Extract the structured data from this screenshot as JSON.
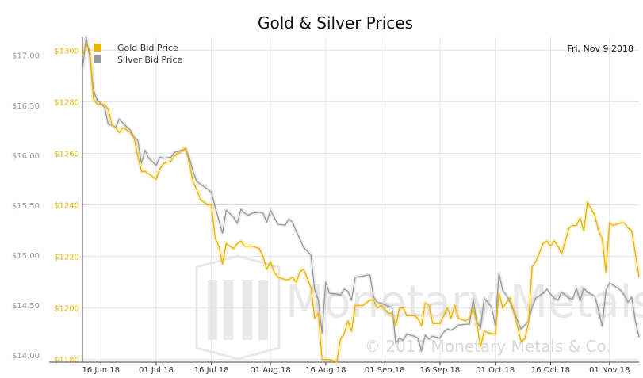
{
  "chart_data": {
    "type": "line",
    "title": "Gold & Silver Prices",
    "date_label": "Fri, Nov 9,2018",
    "x_ticks": [
      "16 Jun 18",
      "01 Jul 18",
      "16 Jul 18",
      "01 Aug 18",
      "16 Aug 18",
      "01 Sep 18",
      "16 Sep 18",
      "01 Oct 18",
      "16 Oct 18",
      "01 Nov 18"
    ],
    "x_tick_dates": [
      "2018-06-16",
      "2018-07-01",
      "2018-07-16",
      "2018-08-01",
      "2018-08-16",
      "2018-09-01",
      "2018-09-16",
      "2018-10-01",
      "2018-10-16",
      "2018-11-01"
    ],
    "xlim": [
      "2018-06-11",
      "2018-11-09"
    ],
    "left_axis": {
      "ticks": [
        "$1180",
        "$1200",
        "$1220",
        "$1240",
        "$1260",
        "$1280",
        "$1300"
      ],
      "values": [
        1180,
        1200,
        1220,
        1240,
        1260,
        1280,
        1300
      ],
      "ylim": [
        1179,
        1305
      ],
      "color": "#e8b400"
    },
    "right_axis": {
      "ticks": [
        "$14.00",
        "$14.50",
        "$15.00",
        "$15.50",
        "$16.00",
        "$16.50",
        "$17.00"
      ],
      "values": [
        14.0,
        14.5,
        15.0,
        15.5,
        16.0,
        16.5,
        17.0
      ],
      "ylim": [
        13.93,
        17.18
      ],
      "color": "#999999"
    },
    "grid": true,
    "legend_position": "top-left",
    "series": [
      {
        "name": "Gold Bid Price",
        "axis": "left",
        "color": "#e8b400",
        "points": [
          [
            "2018-06-11",
            1298
          ],
          [
            "2018-06-12",
            1302
          ],
          [
            "2018-06-13",
            1300
          ],
          [
            "2018-06-14",
            1281
          ],
          [
            "2018-06-15",
            1279
          ],
          [
            "2018-06-17",
            1279
          ],
          [
            "2018-06-18",
            1277
          ],
          [
            "2018-06-19",
            1271
          ],
          [
            "2018-06-20",
            1270
          ],
          [
            "2018-06-21",
            1268
          ],
          [
            "2018-06-22",
            1270
          ],
          [
            "2018-06-24",
            1268
          ],
          [
            "2018-06-25",
            1266
          ],
          [
            "2018-06-26",
            1259
          ],
          [
            "2018-06-27",
            1253
          ],
          [
            "2018-06-28",
            1253
          ],
          [
            "2018-06-29",
            1252
          ],
          [
            "2018-07-01",
            1250
          ],
          [
            "2018-07-02",
            1254
          ],
          [
            "2018-07-03",
            1256
          ],
          [
            "2018-07-05",
            1257
          ],
          [
            "2018-07-06",
            1259
          ],
          [
            "2018-07-09",
            1262
          ],
          [
            "2018-07-10",
            1256
          ],
          [
            "2018-07-11",
            1249
          ],
          [
            "2018-07-12",
            1246
          ],
          [
            "2018-07-13",
            1242
          ],
          [
            "2018-07-15",
            1240
          ],
          [
            "2018-07-16",
            1240
          ],
          [
            "2018-07-17",
            1227
          ],
          [
            "2018-07-18",
            1224
          ],
          [
            "2018-07-19",
            1217
          ],
          [
            "2018-07-20",
            1225
          ],
          [
            "2018-07-22",
            1223
          ],
          [
            "2018-07-23",
            1225
          ],
          [
            "2018-07-24",
            1226
          ],
          [
            "2018-07-25",
            1224
          ],
          [
            "2018-07-26",
            1224
          ],
          [
            "2018-07-27",
            1224
          ],
          [
            "2018-07-29",
            1223
          ],
          [
            "2018-07-30",
            1220
          ],
          [
            "2018-07-31",
            1215
          ],
          [
            "2018-08-01",
            1218
          ],
          [
            "2018-08-02",
            1214
          ],
          [
            "2018-08-03",
            1212
          ],
          [
            "2018-08-05",
            1211
          ],
          [
            "2018-08-06",
            1211
          ],
          [
            "2018-08-07",
            1212
          ],
          [
            "2018-08-08",
            1210
          ],
          [
            "2018-08-09",
            1214
          ],
          [
            "2018-08-10",
            1215
          ],
          [
            "2018-08-12",
            1208
          ],
          [
            "2018-08-13",
            1196
          ],
          [
            "2018-08-14",
            1198
          ],
          [
            "2018-08-15",
            1180
          ],
          [
            "2018-08-17",
            1180
          ],
          [
            "2018-08-19",
            1179
          ],
          [
            "2018-08-20",
            1188
          ],
          [
            "2018-08-21",
            1190
          ],
          [
            "2018-08-22",
            1195
          ],
          [
            "2018-08-23",
            1191
          ],
          [
            "2018-08-24",
            1201
          ],
          [
            "2018-08-26",
            1201
          ],
          [
            "2018-08-27",
            1202
          ],
          [
            "2018-08-28",
            1203
          ],
          [
            "2018-08-29",
            1203
          ],
          [
            "2018-08-30",
            1200
          ],
          [
            "2018-08-31",
            1201
          ],
          [
            "2018-09-02",
            1198
          ],
          [
            "2018-09-03",
            1198
          ],
          [
            "2018-09-04",
            1193
          ],
          [
            "2018-09-05",
            1200
          ],
          [
            "2018-09-06",
            1200
          ],
          [
            "2018-09-07",
            1197
          ],
          [
            "2018-09-09",
            1197
          ],
          [
            "2018-09-10",
            1196
          ],
          [
            "2018-09-11",
            1193
          ],
          [
            "2018-09-12",
            1202
          ],
          [
            "2018-09-13",
            1201
          ],
          [
            "2018-09-14",
            1194
          ],
          [
            "2018-09-16",
            1194
          ],
          [
            "2018-09-17",
            1197
          ],
          [
            "2018-09-18",
            1200
          ],
          [
            "2018-09-19",
            1196
          ],
          [
            "2018-09-20",
            1201
          ],
          [
            "2018-09-21",
            1196
          ],
          [
            "2018-09-23",
            1195
          ],
          [
            "2018-09-24",
            1196
          ],
          [
            "2018-09-25",
            1200
          ],
          [
            "2018-09-26",
            1194
          ],
          [
            "2018-09-27",
            1185
          ],
          [
            "2018-09-28",
            1191
          ],
          [
            "2018-09-30",
            1190
          ],
          [
            "2018-10-01",
            1190
          ],
          [
            "2018-10-02",
            1206
          ],
          [
            "2018-10-03",
            1200
          ],
          [
            "2018-10-04",
            1202
          ],
          [
            "2018-10-05",
            1204
          ],
          [
            "2018-10-07",
            1193
          ],
          [
            "2018-10-08",
            1187
          ],
          [
            "2018-10-09",
            1188
          ],
          [
            "2018-10-10",
            1194
          ],
          [
            "2018-10-11",
            1216
          ],
          [
            "2018-10-12",
            1218
          ],
          [
            "2018-10-14",
            1225
          ],
          [
            "2018-10-15",
            1226
          ],
          [
            "2018-10-16",
            1224
          ],
          [
            "2018-10-17",
            1226
          ],
          [
            "2018-10-18",
            1224
          ],
          [
            "2018-10-19",
            1221
          ],
          [
            "2018-10-21",
            1231
          ],
          [
            "2018-10-22",
            1232
          ],
          [
            "2018-10-23",
            1232
          ],
          [
            "2018-10-24",
            1235
          ],
          [
            "2018-10-25",
            1230
          ],
          [
            "2018-10-26",
            1241
          ],
          [
            "2018-10-28",
            1236
          ],
          [
            "2018-10-29",
            1230
          ],
          [
            "2018-10-30",
            1227
          ],
          [
            "2018-10-31",
            1214
          ],
          [
            "2018-11-01",
            1233
          ],
          [
            "2018-11-02",
            1232
          ],
          [
            "2018-11-04",
            1233
          ],
          [
            "2018-11-05",
            1233
          ],
          [
            "2018-11-06",
            1231
          ],
          [
            "2018-11-07",
            1230
          ],
          [
            "2018-11-08",
            1221
          ],
          [
            "2018-11-09",
            1212
          ]
        ]
      },
      {
        "name": "Silver Bid Price",
        "axis": "right",
        "color": "#999999",
        "points": [
          [
            "2018-06-11",
            16.85
          ],
          [
            "2018-06-12",
            17.18
          ],
          [
            "2018-06-13",
            16.98
          ],
          [
            "2018-06-14",
            16.65
          ],
          [
            "2018-06-15",
            16.55
          ],
          [
            "2018-06-17",
            16.48
          ],
          [
            "2018-06-18",
            16.31
          ],
          [
            "2018-06-19",
            16.3
          ],
          [
            "2018-06-20",
            16.28
          ],
          [
            "2018-06-21",
            16.36
          ],
          [
            "2018-06-22",
            16.32
          ],
          [
            "2018-06-24",
            16.25
          ],
          [
            "2018-06-25",
            16.18
          ],
          [
            "2018-06-26",
            16.15
          ],
          [
            "2018-06-27",
            15.92
          ],
          [
            "2018-06-28",
            16.05
          ],
          [
            "2018-06-29",
            15.97
          ],
          [
            "2018-07-01",
            15.9
          ],
          [
            "2018-07-02",
            15.98
          ],
          [
            "2018-07-03",
            15.97
          ],
          [
            "2018-07-05",
            15.98
          ],
          [
            "2018-07-06",
            16.03
          ],
          [
            "2018-07-09",
            16.06
          ],
          [
            "2018-07-10",
            15.97
          ],
          [
            "2018-07-11",
            15.84
          ],
          [
            "2018-07-12",
            15.74
          ],
          [
            "2018-07-13",
            15.71
          ],
          [
            "2018-07-15",
            15.66
          ],
          [
            "2018-07-16",
            15.63
          ],
          [
            "2018-07-17",
            15.48
          ],
          [
            "2018-07-18",
            15.35
          ],
          [
            "2018-07-19",
            15.22
          ],
          [
            "2018-07-20",
            15.45
          ],
          [
            "2018-07-22",
            15.38
          ],
          [
            "2018-07-23",
            15.32
          ],
          [
            "2018-07-24",
            15.46
          ],
          [
            "2018-07-25",
            15.42
          ],
          [
            "2018-07-26",
            15.4
          ],
          [
            "2018-07-27",
            15.42
          ],
          [
            "2018-07-29",
            15.43
          ],
          [
            "2018-07-30",
            15.42
          ],
          [
            "2018-07-31",
            15.33
          ],
          [
            "2018-08-01",
            15.45
          ],
          [
            "2018-08-02",
            15.38
          ],
          [
            "2018-08-03",
            15.31
          ],
          [
            "2018-08-05",
            15.3
          ],
          [
            "2018-08-06",
            15.36
          ],
          [
            "2018-08-07",
            15.33
          ],
          [
            "2018-08-08",
            15.24
          ],
          [
            "2018-08-09",
            15.16
          ],
          [
            "2018-08-10",
            15.08
          ],
          [
            "2018-08-12",
            15.0
          ],
          [
            "2018-08-13",
            14.65
          ],
          [
            "2018-08-14",
            14.55
          ],
          [
            "2018-08-15",
            14.22
          ],
          [
            "2018-08-16",
            14.73
          ],
          [
            "2018-08-17",
            14.62
          ],
          [
            "2018-08-19",
            14.61
          ],
          [
            "2018-08-20",
            14.6
          ],
          [
            "2018-08-21",
            14.66
          ],
          [
            "2018-08-22",
            14.64
          ],
          [
            "2018-08-23",
            14.55
          ],
          [
            "2018-08-24",
            14.78
          ],
          [
            "2018-08-26",
            14.79
          ],
          [
            "2018-08-27",
            14.8
          ],
          [
            "2018-08-28",
            14.8
          ],
          [
            "2018-08-29",
            14.58
          ],
          [
            "2018-08-30",
            14.53
          ],
          [
            "2018-08-31",
            14.52
          ],
          [
            "2018-09-02",
            14.49
          ],
          [
            "2018-09-03",
            14.48
          ],
          [
            "2018-09-04",
            14.12
          ],
          [
            "2018-09-05",
            14.17
          ],
          [
            "2018-09-06",
            14.15
          ],
          [
            "2018-09-07",
            14.21
          ],
          [
            "2018-09-09",
            14.19
          ],
          [
            "2018-09-10",
            14.17
          ],
          [
            "2018-09-11",
            14.04
          ],
          [
            "2018-09-12",
            14.2
          ],
          [
            "2018-09-13",
            14.16
          ],
          [
            "2018-09-14",
            14.19
          ],
          [
            "2018-09-16",
            14.17
          ],
          [
            "2018-09-17",
            14.23
          ],
          [
            "2018-09-18",
            14.26
          ],
          [
            "2018-09-19",
            14.25
          ],
          [
            "2018-09-20",
            14.27
          ],
          [
            "2018-09-21",
            14.3
          ],
          [
            "2018-09-23",
            14.31
          ],
          [
            "2018-09-24",
            14.31
          ],
          [
            "2018-09-25",
            14.56
          ],
          [
            "2018-09-26",
            14.33
          ],
          [
            "2018-09-27",
            14.27
          ],
          [
            "2018-09-28",
            14.57
          ],
          [
            "2018-09-30",
            14.48
          ],
          [
            "2018-10-01",
            14.3
          ],
          [
            "2018-10-02",
            14.82
          ],
          [
            "2018-10-03",
            14.65
          ],
          [
            "2018-10-04",
            14.6
          ],
          [
            "2018-10-05",
            14.53
          ],
          [
            "2018-10-07",
            14.35
          ],
          [
            "2018-10-08",
            14.26
          ],
          [
            "2018-10-09",
            14.3
          ],
          [
            "2018-10-10",
            14.34
          ],
          [
            "2018-10-11",
            14.48
          ],
          [
            "2018-10-12",
            14.57
          ],
          [
            "2018-10-14",
            14.62
          ],
          [
            "2018-10-15",
            14.66
          ],
          [
            "2018-10-16",
            14.61
          ],
          [
            "2018-10-17",
            14.57
          ],
          [
            "2018-10-18",
            14.55
          ],
          [
            "2018-10-19",
            14.63
          ],
          [
            "2018-10-21",
            14.57
          ],
          [
            "2018-10-22",
            14.56
          ],
          [
            "2018-10-23",
            14.67
          ],
          [
            "2018-10-24",
            14.54
          ],
          [
            "2018-10-25",
            14.67
          ],
          [
            "2018-10-26",
            14.63
          ],
          [
            "2018-10-28",
            14.59
          ],
          [
            "2018-10-29",
            14.45
          ],
          [
            "2018-10-30",
            14.29
          ],
          [
            "2018-10-31",
            14.65
          ],
          [
            "2018-11-01",
            14.72
          ],
          [
            "2018-11-02",
            14.7
          ],
          [
            "2018-11-04",
            14.65
          ],
          [
            "2018-11-05",
            14.6
          ],
          [
            "2018-11-06",
            14.53
          ],
          [
            "2018-11-07",
            14.58
          ],
          [
            "2018-11-08",
            14.34
          ],
          [
            "2018-11-09",
            14.18
          ]
        ]
      }
    ]
  },
  "watermark": {
    "name": "Monetary Metals",
    "copyright": "© 2017 Monetary Metals & Co."
  },
  "colors": {
    "gold": "#e8b400",
    "silver": "#999999",
    "grid": "#e2e2e2",
    "axis": "#444444"
  }
}
